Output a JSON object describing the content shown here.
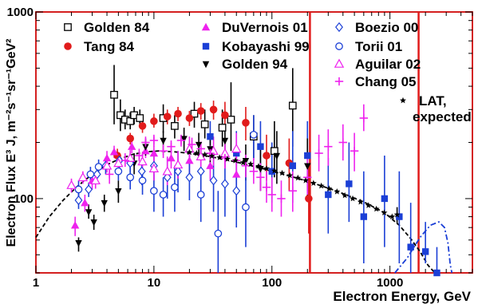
{
  "chart_data": {
    "type": "scatter",
    "title": "",
    "xlabel": "Electron Energy, GeV",
    "ylabel": "Electron Flux  E³ J,  m⁻²s⁻¹sr⁻¹GeV²",
    "xscale": "log",
    "yscale": "log",
    "xlim": [
      1,
      5000
    ],
    "ylim": [
      40,
      1000
    ],
    "x_ticks": [
      {
        "value": 1,
        "label": "1"
      },
      {
        "value": 10,
        "label": "10"
      },
      {
        "value": 100,
        "label": "100"
      },
      {
        "value": 1000,
        "label": "1000"
      }
    ],
    "y_ticks": [
      {
        "value": 100,
        "label": "100"
      },
      {
        "value": 1000,
        "label": "1000"
      }
    ],
    "grid": false,
    "legend_position": "top",
    "colors": {
      "frame": "#d42020",
      "red": "#e11b1b",
      "blue": "#1b3fd6",
      "magenta": "#ee22ee",
      "black": "#000000",
      "curve": "#000000",
      "bluecurve": "#1b3fd6"
    },
    "series": [
      {
        "name": "Golden 84",
        "marker": "open-square",
        "color": "#000000",
        "points": [
          [
            4.6,
            360,
            520,
            250
          ],
          [
            5.2,
            280,
            340,
            230
          ],
          [
            5.7,
            265,
            300,
            235
          ],
          [
            6.3,
            260,
            290,
            235
          ],
          [
            6.8,
            280,
            310,
            250
          ],
          [
            7.6,
            270,
            300,
            240
          ],
          [
            12,
            270,
            320,
            225
          ],
          [
            15,
            245,
            280,
            210
          ],
          [
            22,
            285,
            330,
            240
          ],
          [
            27,
            250,
            300,
            210
          ],
          [
            38,
            240,
            300,
            190
          ],
          [
            45,
            265,
            420,
            180
          ],
          [
            70,
            215,
            280,
            165
          ],
          [
            105,
            180,
            260,
            130
          ],
          [
            150,
            315,
            500,
            190
          ]
        ]
      },
      {
        "name": "Tang 84",
        "marker": "filled-circle",
        "color": "#e11b1b",
        "points": [
          [
            4.9,
            170,
            185,
            155
          ],
          [
            6.3,
            210,
            225,
            195
          ],
          [
            8.0,
            245,
            265,
            225
          ],
          [
            10,
            260,
            285,
            240
          ],
          [
            13,
            275,
            300,
            250
          ],
          [
            16,
            285,
            310,
            260
          ],
          [
            20,
            270,
            295,
            245
          ],
          [
            25,
            295,
            325,
            265
          ],
          [
            32,
            300,
            335,
            265
          ],
          [
            40,
            280,
            330,
            235
          ],
          [
            60,
            255,
            310,
            205
          ],
          [
            90,
            170,
            220,
            125
          ],
          [
            140,
            155,
            210,
            110
          ],
          [
            205,
            100,
            150,
            65
          ]
        ]
      },
      {
        "name": "DuVernois 01",
        "marker": "filled-triangle",
        "color": "#ee22ee",
        "points": [
          [
            2.15,
            72,
            80,
            63
          ],
          [
            2.6,
            95,
            105,
            85
          ],
          [
            3.0,
            125,
            140,
            112
          ],
          [
            4.0,
            165,
            180,
            150
          ],
          [
            4.6,
            178,
            192,
            165
          ],
          [
            6.5,
            190,
            205,
            175
          ],
          [
            8.5,
            180,
            195,
            165
          ],
          [
            10,
            175,
            192,
            158
          ],
          [
            14,
            165,
            185,
            145
          ],
          [
            20,
            160,
            185,
            135
          ],
          [
            30,
            150,
            180,
            125
          ],
          [
            50,
            135,
            170,
            105
          ]
        ]
      },
      {
        "name": "Kobayashi 99",
        "marker": "filled-square",
        "color": "#1b3fd6",
        "points": [
          [
            30,
            215,
            260,
            175
          ],
          [
            50,
            175,
            230,
            130
          ],
          [
            80,
            190,
            260,
            135
          ],
          [
            100,
            140,
            200,
            95
          ],
          [
            150,
            150,
            230,
            95
          ],
          [
            200,
            170,
            260,
            110
          ],
          [
            300,
            105,
            165,
            65
          ],
          [
            450,
            120,
            200,
            75
          ],
          [
            600,
            80,
            140,
            45
          ],
          [
            900,
            100,
            170,
            55
          ],
          [
            1200,
            80,
            140,
            45
          ],
          [
            1500,
            55,
            95,
            40
          ],
          [
            2000,
            52,
            75,
            45
          ],
          [
            2500,
            40,
            55,
            40
          ]
        ]
      },
      {
        "name": "Golden 94",
        "marker": "filled-triangle-down",
        "color": "#000000",
        "points": [
          [
            2.3,
            58,
            62,
            52
          ],
          [
            2.8,
            85,
            93,
            78
          ],
          [
            3.1,
            75,
            82,
            68
          ],
          [
            3.8,
            95,
            105,
            85
          ],
          [
            5,
            110,
            125,
            95
          ],
          [
            6.8,
            155,
            175,
            135
          ],
          [
            8.5,
            190,
            210,
            170
          ],
          [
            12,
            205,
            230,
            180
          ],
          [
            18,
            210,
            240,
            180
          ],
          [
            24,
            195,
            225,
            165
          ],
          [
            30,
            185,
            215,
            155
          ],
          [
            40,
            205,
            250,
            165
          ],
          [
            60,
            160,
            195,
            125
          ],
          [
            80,
            145,
            190,
            110
          ],
          [
            110,
            170,
            230,
            120
          ],
          [
            200,
            150,
            210,
            100
          ]
        ]
      },
      {
        "name": "Boezio 00",
        "marker": "open-diamond",
        "color": "#1b3fd6",
        "points": [
          [
            2.3,
            98,
            108,
            88
          ],
          [
            2.8,
            112,
            122,
            102
          ],
          [
            3.3,
            135,
            150,
            122
          ],
          [
            3.9,
            150,
            165,
            135
          ],
          [
            5.1,
            160,
            175,
            145
          ],
          [
            6.3,
            155,
            175,
            138
          ],
          [
            7.9,
            140,
            165,
            118
          ],
          [
            10,
            150,
            180,
            125
          ],
          [
            13,
            130,
            165,
            100
          ],
          [
            16,
            140,
            180,
            108
          ],
          [
            20,
            130,
            170,
            98
          ],
          [
            25,
            140,
            190,
            100
          ],
          [
            32,
            125,
            175,
            85
          ],
          [
            40,
            120,
            175,
            80
          ],
          [
            50,
            110,
            170,
            70
          ]
        ]
      },
      {
        "name": "Torii 01",
        "marker": "open-circle",
        "color": "#1b3fd6",
        "points": [
          [
            2.3,
            112,
            125,
            100
          ],
          [
            2.9,
            135,
            148,
            122
          ],
          [
            3.4,
            148,
            162,
            135
          ],
          [
            5.0,
            140,
            155,
            125
          ],
          [
            6.3,
            130,
            148,
            112
          ],
          [
            8.0,
            125,
            145,
            105
          ],
          [
            10,
            110,
            135,
            85
          ],
          [
            12,
            105,
            130,
            80
          ],
          [
            15,
            115,
            150,
            85
          ],
          [
            25,
            105,
            145,
            75
          ],
          [
            35,
            65,
            110,
            35
          ],
          [
            60,
            90,
            150,
            55
          ],
          [
            70,
            220,
            280,
            160
          ]
        ]
      },
      {
        "name": "Aguilar 02",
        "marker": "open-triangle",
        "color": "#ee22ee",
        "points": [
          [
            2.0,
            118,
            128,
            108
          ],
          [
            2.5,
            130,
            140,
            120
          ],
          [
            3.2,
            125,
            137,
            113
          ],
          [
            4.0,
            150,
            162,
            138
          ],
          [
            5.0,
            155,
            170,
            140
          ],
          [
            6.3,
            165,
            182,
            150
          ],
          [
            8.0,
            158,
            178,
            140
          ],
          [
            10,
            145,
            170,
            125
          ],
          [
            13,
            140,
            168,
            118
          ],
          [
            16,
            152,
            180,
            128
          ],
          [
            20,
            185,
            215,
            160
          ],
          [
            25,
            168,
            200,
            140
          ],
          [
            32,
            180,
            215,
            150
          ],
          [
            40,
            175,
            210,
            145
          ],
          [
            50,
            185,
            225,
            150
          ]
        ]
      },
      {
        "name": "Chang 05",
        "marker": "plus",
        "color": "#ee22ee",
        "points": [
          [
            4.2,
            135,
            150,
            120
          ],
          [
            5.7,
            160,
            175,
            148
          ],
          [
            7.5,
            170,
            185,
            158
          ],
          [
            8.5,
            200,
            215,
            188
          ],
          [
            10,
            205,
            220,
            190
          ],
          [
            12,
            180,
            195,
            165
          ],
          [
            14,
            190,
            205,
            175
          ],
          [
            17,
            205,
            220,
            190
          ],
          [
            21,
            195,
            212,
            180
          ],
          [
            25,
            185,
            202,
            170
          ],
          [
            30,
            175,
            192,
            160
          ],
          [
            40,
            165,
            185,
            145
          ],
          [
            50,
            160,
            182,
            140
          ],
          [
            60,
            150,
            172,
            130
          ],
          [
            70,
            140,
            165,
            120
          ],
          [
            80,
            130,
            155,
            110
          ],
          [
            90,
            115,
            140,
            95
          ],
          [
            100,
            105,
            130,
            85
          ],
          [
            120,
            100,
            125,
            80
          ],
          [
            150,
            110,
            140,
            85
          ],
          [
            200,
            130,
            165,
            105
          ],
          [
            250,
            175,
            220,
            140
          ],
          [
            300,
            190,
            235,
            150
          ],
          [
            400,
            200,
            250,
            160
          ],
          [
            500,
            180,
            225,
            140
          ],
          [
            600,
            270,
            320,
            230
          ]
        ]
      },
      {
        "name": "LAT, expected",
        "marker": "star",
        "color": "#000000",
        "points": [
          [
            20,
            177,
            177,
            177
          ],
          [
            23,
            175,
            175,
            175
          ],
          [
            27,
            172,
            172,
            172
          ],
          [
            31,
            169,
            169,
            169
          ],
          [
            36,
            166,
            166,
            166
          ],
          [
            42,
            163,
            163,
            163
          ],
          [
            49,
            160,
            160,
            160
          ],
          [
            57,
            156,
            156,
            156
          ],
          [
            66,
            153,
            153,
            153
          ],
          [
            77,
            149,
            149,
            149
          ],
          [
            90,
            145,
            145,
            145
          ],
          [
            105,
            141,
            141,
            141
          ],
          [
            122,
            137,
            137,
            137
          ],
          [
            142,
            133,
            133,
            133
          ],
          [
            166,
            129,
            129,
            129
          ],
          [
            193,
            125,
            125,
            125
          ],
          [
            225,
            121,
            121,
            121
          ],
          [
            262,
            117,
            117,
            117
          ],
          [
            305,
            113,
            113,
            113
          ],
          [
            356,
            109,
            109,
            109
          ],
          [
            415,
            104,
            104,
            104
          ],
          [
            484,
            100,
            100,
            100
          ],
          [
            564,
            96,
            96,
            96
          ],
          [
            658,
            92,
            92,
            92
          ],
          [
            767,
            88,
            88,
            88
          ],
          [
            895,
            84,
            84,
            84
          ],
          [
            1043,
            80,
            80,
            80
          ],
          [
            1150,
            82,
            90,
            74
          ]
        ]
      }
    ],
    "curves": [
      {
        "style": "dashed",
        "color": "#000000",
        "points": [
          [
            1,
            62
          ],
          [
            1.3,
            80
          ],
          [
            1.7,
            98
          ],
          [
            2.2,
            115
          ],
          [
            3,
            135
          ],
          [
            4,
            152
          ],
          [
            5,
            162
          ],
          [
            6.5,
            172
          ],
          [
            8.5,
            178
          ],
          [
            11,
            180
          ],
          [
            15,
            178
          ],
          [
            20,
            175
          ],
          [
            30,
            168
          ],
          [
            50,
            157
          ],
          [
            80,
            146
          ],
          [
            120,
            136
          ],
          [
            200,
            124
          ],
          [
            350,
            110
          ],
          [
            600,
            96
          ],
          [
            900,
            84
          ],
          [
            1200,
            72
          ],
          [
            1500,
            61
          ],
          [
            1800,
            52
          ],
          [
            2100,
            44
          ],
          [
            2400,
            38
          ]
        ]
      },
      {
        "style": "dashdot",
        "color": "#1b3fd6",
        "points": [
          [
            1100,
            38
          ],
          [
            1400,
            48
          ],
          [
            1800,
            62
          ],
          [
            2200,
            72
          ],
          [
            2600,
            75
          ],
          [
            2900,
            70
          ],
          [
            3100,
            58
          ],
          [
            3250,
            44
          ],
          [
            3350,
            37
          ]
        ]
      }
    ],
    "vertical_lines": [
      {
        "x": 210,
        "color": "#e11b1b"
      },
      {
        "x": 1750,
        "color": "#e11b1b"
      }
    ]
  }
}
